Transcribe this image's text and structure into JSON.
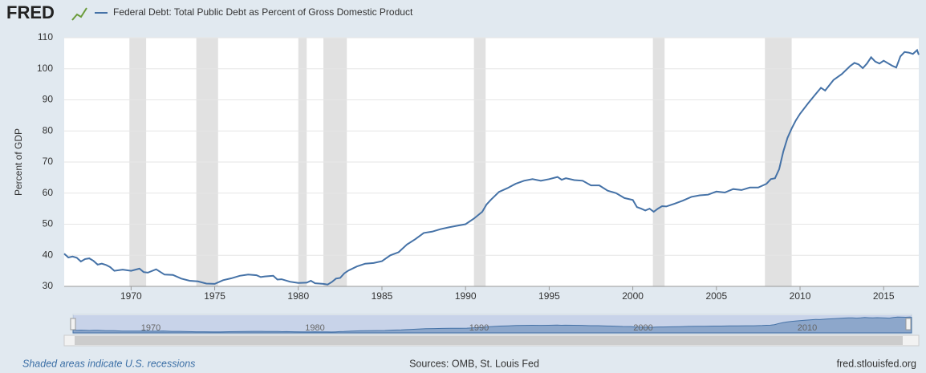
{
  "logo": "FRED",
  "chart_data": {
    "type": "line",
    "x": [
      1966.0,
      1966.25,
      1966.5,
      1966.75,
      1967.0,
      1967.25,
      1967.5,
      1967.75,
      1968.0,
      1968.25,
      1968.5,
      1968.75,
      1969.0,
      1969.5,
      1970.0,
      1970.5,
      1970.75,
      1971.0,
      1971.5,
      1972.0,
      1972.5,
      1973.0,
      1973.5,
      1974.0,
      1974.5,
      1975.0,
      1975.5,
      1976.0,
      1976.5,
      1977.0,
      1977.5,
      1977.75,
      1978.0,
      1978.5,
      1978.75,
      1979.0,
      1979.5,
      1980.0,
      1980.5,
      1980.75,
      1981.0,
      1981.5,
      1981.75,
      1982.0,
      1982.25,
      1982.5,
      1982.75,
      1983.0,
      1983.5,
      1984.0,
      1984.5,
      1985.0,
      1985.5,
      1986.0,
      1986.5,
      1987.0,
      1987.5,
      1988.0,
      1988.5,
      1989.0,
      1989.5,
      1990.0,
      1990.5,
      1991.0,
      1991.25,
      1991.5,
      1992.0,
      1992.5,
      1993.0,
      1993.5,
      1994.0,
      1994.5,
      1995.0,
      1995.5,
      1995.75,
      1996.0,
      1996.5,
      1997.0,
      1997.5,
      1998.0,
      1998.5,
      1999.0,
      1999.5,
      2000.0,
      2000.25,
      2000.5,
      2000.75,
      2001.0,
      2001.25,
      2001.5,
      2001.75,
      2002.0,
      2002.5,
      2003.0,
      2003.5,
      2004.0,
      2004.5,
      2005.0,
      2005.5,
      2006.0,
      2006.5,
      2007.0,
      2007.5,
      2008.0,
      2008.25,
      2008.5,
      2008.75,
      2009.0,
      2009.25,
      2009.5,
      2009.75,
      2010.0,
      2010.5,
      2011.0,
      2011.25,
      2011.5,
      2012.0,
      2012.5,
      2013.0,
      2013.25,
      2013.5,
      2013.75,
      2014.0,
      2014.25,
      2014.5,
      2014.75,
      2015.0,
      2015.5,
      2015.75,
      2016.0,
      2016.25,
      2016.5,
      2016.75,
      2017.0,
      2017.1
    ],
    "series": [
      {
        "name": "Federal Debt: Total Public Debt as Percent of Gross Domestic Product",
        "color": "#4572a7",
        "values": [
          40.5,
          39.3,
          39.6,
          39.2,
          38.0,
          38.8,
          39.0,
          38.2,
          37.0,
          37.3,
          36.9,
          36.2,
          35.0,
          35.4,
          35.0,
          35.7,
          34.6,
          34.4,
          35.5,
          33.8,
          33.7,
          32.5,
          31.8,
          31.6,
          30.9,
          30.8,
          32.0,
          32.6,
          33.4,
          33.8,
          33.6,
          33.0,
          33.2,
          33.4,
          32.2,
          32.3,
          31.5,
          31.1,
          31.2,
          31.8,
          31.0,
          30.8,
          30.6,
          31.4,
          32.5,
          32.7,
          34.2,
          35.1,
          36.4,
          37.3,
          37.5,
          38.1,
          40.0,
          41.0,
          43.5,
          45.2,
          47.2,
          47.6,
          48.4,
          49.0,
          49.5,
          50.0,
          51.8,
          54.0,
          56.3,
          57.8,
          60.4,
          61.6,
          63.0,
          64.0,
          64.5,
          64.0,
          64.5,
          65.2,
          64.3,
          64.8,
          64.2,
          64.0,
          62.5,
          62.5,
          60.8,
          60.0,
          58.4,
          57.8,
          55.5,
          55.0,
          54.4,
          55.0,
          54.0,
          55.0,
          55.8,
          55.7,
          56.6,
          57.6,
          58.8,
          59.3,
          59.5,
          60.5,
          60.2,
          61.3,
          61.0,
          61.8,
          61.8,
          63.0,
          64.5,
          64.8,
          67.7,
          73.4,
          77.8,
          80.8,
          83.4,
          85.5,
          89.0,
          92.3,
          93.9,
          93.0,
          96.4,
          98.3,
          100.9,
          101.9,
          101.4,
          100.2,
          101.7,
          103.7,
          102.3,
          101.7,
          102.6,
          101.0,
          100.4,
          104.0,
          105.4,
          105.2,
          104.8,
          106.0,
          104.5
        ]
      }
    ],
    "recessions": [
      [
        1969.9,
        1970.9
      ],
      [
        1973.9,
        1975.2
      ],
      [
        1980.0,
        1980.5
      ],
      [
        1981.5,
        1982.9
      ],
      [
        1990.5,
        1991.2
      ],
      [
        2001.2,
        2001.9
      ],
      [
        2007.9,
        2009.5
      ]
    ],
    "ylabel": "Percent of GDP",
    "xlim": [
      1966.0,
      2017.1
    ],
    "ylim": [
      30,
      110
    ],
    "xticks": [
      1970,
      1975,
      1980,
      1985,
      1990,
      1995,
      2000,
      2005,
      2010,
      2015
    ],
    "yticks": [
      30,
      40,
      50,
      60,
      70,
      80,
      90,
      100,
      110
    ],
    "navigator_ticks": [
      1970,
      1980,
      1990,
      2000,
      2010
    ],
    "grid": true
  },
  "footer": {
    "note": "Shaded areas indicate U.S. recessions",
    "sources": "Sources: OMB, St. Louis Fed",
    "site": "fred.stlouisfed.org"
  }
}
